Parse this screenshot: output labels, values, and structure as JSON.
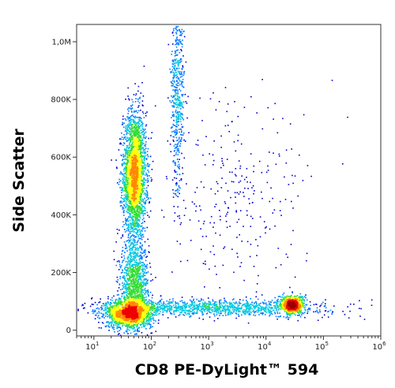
{
  "chart_data": {
    "type": "scatter",
    "subtype": "flow-cytometry-density-dot-plot",
    "xlabel": "CD8 PE-DyLight™ 594",
    "ylabel": "Side Scatter",
    "x_scale": "log",
    "xlim": [
      5,
      1000000
    ],
    "x_ticks": [
      {
        "value": 10,
        "base": "10",
        "exp": "1"
      },
      {
        "value": 100,
        "base": "10",
        "exp": "2"
      },
      {
        "value": 1000,
        "base": "10",
        "exp": "3"
      },
      {
        "value": 10000,
        "base": "10",
        "exp": "4"
      },
      {
        "value": 100000,
        "base": "10",
        "exp": "5"
      },
      {
        "value": 1000000,
        "base": "10",
        "exp": "6"
      }
    ],
    "y_scale": "linear",
    "ylim": [
      -20000,
      1060000
    ],
    "y_ticks": [
      {
        "value": 0,
        "label": "0"
      },
      {
        "value": 200000,
        "label": "200K"
      },
      {
        "value": 400000,
        "label": "400K"
      },
      {
        "value": 600000,
        "label": "600K"
      },
      {
        "value": 800000,
        "label": "800K"
      },
      {
        "value": 1000000,
        "label": "1,0M"
      }
    ],
    "grid": false,
    "legend": "none",
    "density_colors": [
      "#0000cc",
      "#0077ff",
      "#00c8e0",
      "#33dd33",
      "#ffff00",
      "#ff8800",
      "#ee0000",
      "#990000"
    ],
    "populations": [
      {
        "x_center": 50,
        "x_spread_decades": 0.1,
        "y_center": 540000,
        "y_spread": 110000,
        "relative_size": 0.3
      },
      {
        "x_center": 50,
        "x_spread_decades": 0.12,
        "y_center": 160000,
        "y_spread": 70000,
        "relative_size": 0.12
      },
      {
        "x_center": 40,
        "x_spread_decades": 0.2,
        "y_center": 60000,
        "y_spread": 25000,
        "relative_size": 0.18
      },
      {
        "x_center": 28000,
        "x_spread_decades": 0.1,
        "y_center": 90000,
        "y_spread": 16000,
        "relative_size": 0.09
      },
      {
        "x_center": 1000,
        "x_spread_decades": 1.0,
        "y_center": 80000,
        "y_spread": 14000,
        "relative_size": 0.14
      },
      {
        "x_center": 280,
        "x_spread_decades": 0.06,
        "y_center": 800000,
        "y_spread": 170000,
        "relative_size": 0.06
      },
      {
        "x_center": 3000,
        "x_spread_decades": 0.6,
        "y_center": 450000,
        "y_spread": 170000,
        "relative_size": 0.03
      }
    ]
  }
}
